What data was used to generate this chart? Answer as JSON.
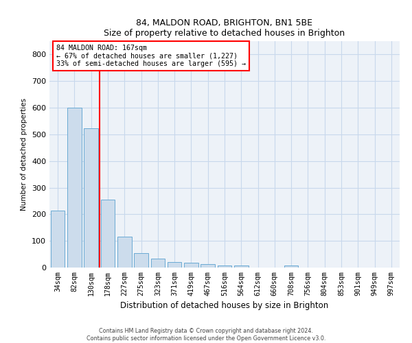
{
  "title1": "84, MALDON ROAD, BRIGHTON, BN1 5BE",
  "title2": "Size of property relative to detached houses in Brighton",
  "xlabel": "Distribution of detached houses by size in Brighton",
  "ylabel": "Number of detached properties",
  "categories": [
    "34sqm",
    "82sqm",
    "130sqm",
    "178sqm",
    "227sqm",
    "275sqm",
    "323sqm",
    "371sqm",
    "419sqm",
    "467sqm",
    "516sqm",
    "564sqm",
    "612sqm",
    "660sqm",
    "708sqm",
    "756sqm",
    "804sqm",
    "853sqm",
    "901sqm",
    "949sqm",
    "997sqm"
  ],
  "values": [
    213,
    600,
    523,
    255,
    115,
    55,
    33,
    20,
    18,
    12,
    8,
    7,
    0,
    0,
    8,
    0,
    0,
    0,
    0,
    0,
    0
  ],
  "bar_color": "#ccdcec",
  "bar_edge_color": "#6aaad4",
  "vline_x_index": 2.5,
  "vline_color": "red",
  "annotation_text": "84 MALDON ROAD: 167sqm\n← 67% of detached houses are smaller (1,227)\n33% of semi-detached houses are larger (595) →",
  "annotation_box_color": "white",
  "annotation_box_edge_color": "red",
  "ylim": [
    0,
    850
  ],
  "yticks": [
    0,
    100,
    200,
    300,
    400,
    500,
    600,
    700,
    800
  ],
  "footnote1": "Contains HM Land Registry data © Crown copyright and database right 2024.",
  "footnote2": "Contains public sector information licensed under the Open Government Licence v3.0.",
  "grid_color": "#c8d8ec",
  "background_color": "#edf2f8"
}
